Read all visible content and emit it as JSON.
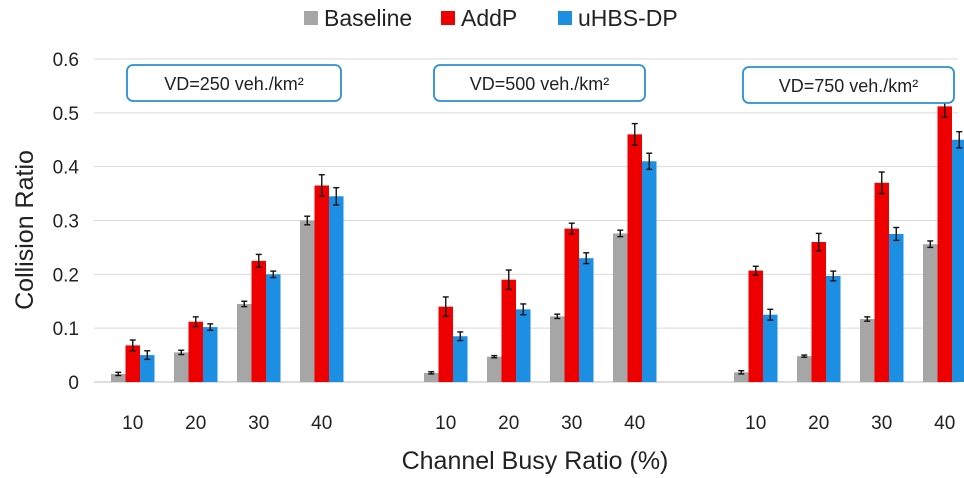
{
  "chart_data": {
    "type": "bar",
    "xlabel": "Channel Busy Ratio (%)",
    "ylabel": "Collision Ratio",
    "ylim": [
      0,
      0.6
    ],
    "yticks": [
      0,
      0.1,
      0.2,
      0.3,
      0.4,
      0.5,
      0.6
    ],
    "ytick_labels": [
      "0",
      "0.1",
      "0.2",
      "0.3",
      "0.4",
      "0.5",
      "0.6"
    ],
    "grid": "horizontal",
    "legend_position": "top-center",
    "series": [
      {
        "name": "Baseline",
        "color": "#a6a6a6"
      },
      {
        "name": "AddP",
        "color": "#ee0000"
      },
      {
        "name": "uHBS-DP",
        "color": "#1d8fe2"
      }
    ],
    "groups": [
      {
        "label": "VD=250 veh./km²",
        "categories": [
          "10",
          "20",
          "30",
          "40"
        ],
        "values": [
          [
            0.015,
            0.068,
            0.05
          ],
          [
            0.055,
            0.112,
            0.102
          ],
          [
            0.145,
            0.225,
            0.2
          ],
          [
            0.3,
            0.365,
            0.345
          ]
        ],
        "errors": [
          [
            0.003,
            0.01,
            0.008
          ],
          [
            0.004,
            0.009,
            0.006
          ],
          [
            0.005,
            0.012,
            0.006
          ],
          [
            0.008,
            0.02,
            0.016
          ]
        ]
      },
      {
        "label": "VD=500 veh./km²",
        "categories": [
          "10",
          "20",
          "30",
          "40"
        ],
        "values": [
          [
            0.017,
            0.14,
            0.085
          ],
          [
            0.047,
            0.19,
            0.135
          ],
          [
            0.122,
            0.285,
            0.23
          ],
          [
            0.276,
            0.46,
            0.41
          ]
        ],
        "errors": [
          [
            0.002,
            0.018,
            0.008
          ],
          [
            0.002,
            0.018,
            0.01
          ],
          [
            0.004,
            0.01,
            0.01
          ],
          [
            0.006,
            0.02,
            0.015
          ]
        ]
      },
      {
        "label": "VD=750 veh./km²",
        "categories": [
          "10",
          "20",
          "30",
          "40"
        ],
        "values": [
          [
            0.018,
            0.207,
            0.125
          ],
          [
            0.048,
            0.26,
            0.197
          ],
          [
            0.117,
            0.37,
            0.275
          ],
          [
            0.256,
            0.512,
            0.45
          ]
        ],
        "errors": [
          [
            0.003,
            0.008,
            0.01
          ],
          [
            0.002,
            0.016,
            0.009
          ],
          [
            0.004,
            0.02,
            0.012
          ],
          [
            0.006,
            0.02,
            0.015
          ]
        ]
      }
    ]
  }
}
